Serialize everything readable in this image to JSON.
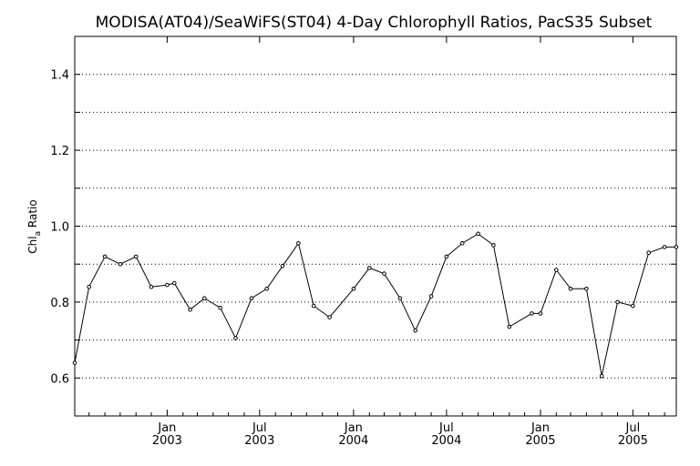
{
  "chart_data": {
    "type": "line",
    "title": "MODISA(AT04)/SeaWiFS(ST04) 4-Day Chlorophyll Ratios, PacS35 Subset",
    "ylabel": "Chl",
    "ylabel_subscript": "a",
    "ylabel_suffix": " Ratio",
    "xlabel": "",
    "ylim": [
      0.5,
      1.5
    ],
    "yticks": [
      "0.6",
      "0.8",
      "1.0",
      "1.2",
      "1.4"
    ],
    "grid": true,
    "xlim": [
      "2002-07-04",
      "2005-09-24"
    ],
    "xticks": [
      {
        "date": "2003-01-01",
        "month": "Jan",
        "year": "2003"
      },
      {
        "date": "2003-07-01",
        "month": "Jul",
        "year": "2003"
      },
      {
        "date": "2004-01-01",
        "month": "Jan",
        "year": "2004"
      },
      {
        "date": "2004-07-01",
        "month": "Jul",
        "year": "2004"
      },
      {
        "date": "2005-01-01",
        "month": "Jan",
        "year": "2005"
      },
      {
        "date": "2005-07-01",
        "month": "Jul",
        "year": "2005"
      }
    ],
    "series": [
      {
        "x": [
          "2002-07-04",
          "2002-08-01",
          "2002-09-01",
          "2002-10-01",
          "2002-11-01",
          "2002-12-01",
          "2003-01-01",
          "2003-01-15",
          "2003-02-15",
          "2003-03-15",
          "2003-04-15",
          "2003-05-15",
          "2003-06-15",
          "2003-07-15",
          "2003-08-15",
          "2003-09-15",
          "2003-10-15",
          "2003-11-15",
          "2004-01-01",
          "2004-02-01",
          "2004-03-01",
          "2004-04-01",
          "2004-05-01",
          "2004-06-01",
          "2004-07-01",
          "2004-08-01",
          "2004-09-01",
          "2004-10-01",
          "2004-11-01",
          "2004-12-15",
          "2005-01-01",
          "2005-02-01",
          "2005-03-01",
          "2005-04-01",
          "2005-05-01",
          "2005-06-01",
          "2005-07-01",
          "2005-08-01",
          "2005-09-01",
          "2005-09-24"
        ],
        "values": [
          0.64,
          0.84,
          0.92,
          0.9,
          0.92,
          0.84,
          0.845,
          0.85,
          0.78,
          0.81,
          0.785,
          0.705,
          0.81,
          0.835,
          0.895,
          0.955,
          0.79,
          0.76,
          0.835,
          0.89,
          0.875,
          0.81,
          0.725,
          0.815,
          0.92,
          0.955,
          0.98,
          0.95,
          0.735,
          0.77,
          0.77,
          0.885,
          0.835,
          0.835,
          0.605,
          0.8,
          0.79,
          0.93,
          0.945,
          0.945
        ]
      }
    ]
  }
}
